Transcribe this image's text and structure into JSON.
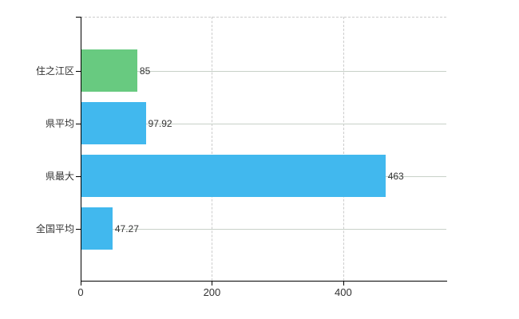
{
  "chart_data": {
    "type": "bar",
    "orientation": "horizontal",
    "title": "",
    "xlabel": "",
    "ylabel": "",
    "categories": [
      "住之江区",
      "県平均",
      "県最大",
      "全国平均"
    ],
    "values": [
      85,
      97.92,
      463,
      47.27
    ],
    "value_labels": [
      "85",
      "97.92",
      "463",
      "47.27"
    ],
    "bar_colors": [
      "#68ca80",
      "#41b8ee",
      "#41b8ee",
      "#41b8ee"
    ],
    "x_ticks": [
      0,
      200,
      400
    ],
    "x_tick_labels": [
      "0",
      "200",
      "400"
    ],
    "xlim": [
      0,
      557
    ],
    "grid": true,
    "legend": false
  },
  "colors": {
    "axis": "#000000",
    "h_gridline": "#c8d1c8",
    "v_gridline": "#cccccc",
    "top_border": "#cccccc",
    "background": "#ffffff",
    "text": "#333333"
  }
}
